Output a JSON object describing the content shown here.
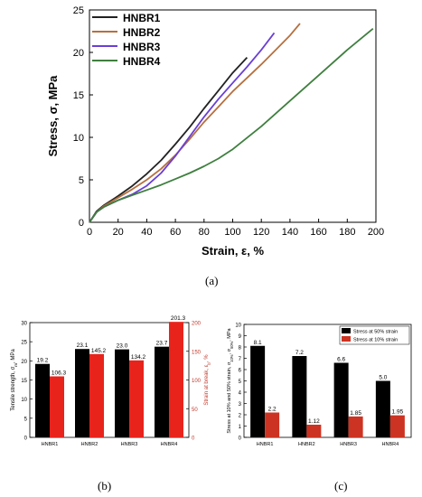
{
  "chart_data": [
    {
      "id": "a",
      "type": "line",
      "panel_label": "(a)",
      "xlabel": "Strain, ε, %",
      "ylabel": "Stress, σ, MPa",
      "xlim": [
        0,
        200
      ],
      "ylim": [
        0,
        25
      ],
      "xticks": [
        0,
        20,
        40,
        60,
        80,
        100,
        120,
        140,
        160,
        180,
        200
      ],
      "yticks": [
        0,
        5,
        10,
        15,
        20,
        25
      ],
      "legend_position": "top-left",
      "grid": false,
      "series": [
        {
          "name": "HNBR1",
          "color": "#222222",
          "x": [
            0,
            5,
            10,
            20,
            30,
            40,
            50,
            60,
            70,
            80,
            90,
            100,
            110
          ],
          "y": [
            0,
            1.3,
            2.0,
            3.1,
            4.3,
            5.7,
            7.3,
            9.2,
            11.2,
            13.4,
            15.5,
            17.6,
            19.4
          ]
        },
        {
          "name": "HNBR2",
          "color": "#b5703f",
          "x": [
            0,
            5,
            10,
            20,
            30,
            40,
            50,
            60,
            70,
            80,
            90,
            100,
            110,
            120,
            130,
            140,
            147
          ],
          "y": [
            0,
            1.2,
            1.9,
            2.9,
            3.9,
            5.0,
            6.3,
            7.9,
            9.8,
            11.8,
            13.6,
            15.4,
            17.0,
            18.6,
            20.3,
            22.0,
            23.4
          ]
        },
        {
          "name": "HNBR3",
          "color": "#6a3fd6",
          "x": [
            0,
            5,
            10,
            20,
            30,
            40,
            50,
            60,
            70,
            80,
            90,
            100,
            110,
            120,
            129
          ],
          "y": [
            0,
            1.2,
            1.8,
            2.6,
            3.3,
            4.3,
            5.8,
            7.8,
            10.1,
            12.4,
            14.5,
            16.4,
            18.3,
            20.3,
            22.3
          ]
        },
        {
          "name": "HNBR4",
          "color": "#3f7f3f",
          "x": [
            0,
            5,
            10,
            20,
            30,
            40,
            50,
            60,
            70,
            80,
            90,
            100,
            120,
            140,
            160,
            180,
            198
          ],
          "y": [
            0,
            1.2,
            1.8,
            2.6,
            3.2,
            3.8,
            4.4,
            5.1,
            5.8,
            6.6,
            7.5,
            8.6,
            11.3,
            14.3,
            17.3,
            20.3,
            22.8
          ]
        }
      ]
    },
    {
      "id": "b",
      "type": "bar",
      "panel_label": "(b)",
      "categories": [
        "HNBR1",
        "HNBR2",
        "HNBR3",
        "HNBR4"
      ],
      "ylabel": "Tensile strength, σ_m, MPa",
      "y2label": "Strain at break, ε_b, %",
      "ylim": [
        0,
        30
      ],
      "y2lim": [
        0,
        200
      ],
      "yticks": [
        0,
        5,
        10,
        15,
        20,
        25,
        30
      ],
      "y2ticks": [
        0,
        50,
        100,
        150,
        200
      ],
      "series": [
        {
          "name": "Tensile strength",
          "color": "#000000",
          "axis": "left",
          "values": [
            19.2,
            23.1,
            23.0,
            23.7
          ],
          "labels": [
            "19.2",
            "23.1",
            "23.0",
            "23.7"
          ]
        },
        {
          "name": "Strain at break",
          "color": "#e8231c",
          "axis": "right",
          "values": [
            106.3,
            145.2,
            134.2,
            201.3
          ],
          "labels": [
            "106.3",
            "145.2",
            "134.2",
            "201.3"
          ]
        }
      ]
    },
    {
      "id": "c",
      "type": "bar",
      "panel_label": "(c)",
      "categories": [
        "HNBR1",
        "HNBR2",
        "HNBR3",
        "HNBR4"
      ],
      "ylabel": "Stress at 10% and 50% strain, σ_10%, σ_50%, MPa",
      "ylim": [
        0,
        10
      ],
      "yticks": [
        0,
        1,
        2,
        3,
        4,
        5,
        6,
        7,
        8,
        9,
        10
      ],
      "legend_position": "top-right",
      "series": [
        {
          "name": "Stress at 50% strain",
          "color": "#000000",
          "values": [
            8.1,
            7.2,
            6.6,
            5.0
          ],
          "labels": [
            "8.1",
            "7.2",
            "6.6",
            "5.0"
          ]
        },
        {
          "name": "Stress at 10% strain",
          "color": "#cc3322",
          "values": [
            2.2,
            1.12,
            1.85,
            1.95
          ],
          "labels": [
            "2.2",
            "1.12",
            "1.85",
            "1.95"
          ]
        }
      ]
    }
  ]
}
